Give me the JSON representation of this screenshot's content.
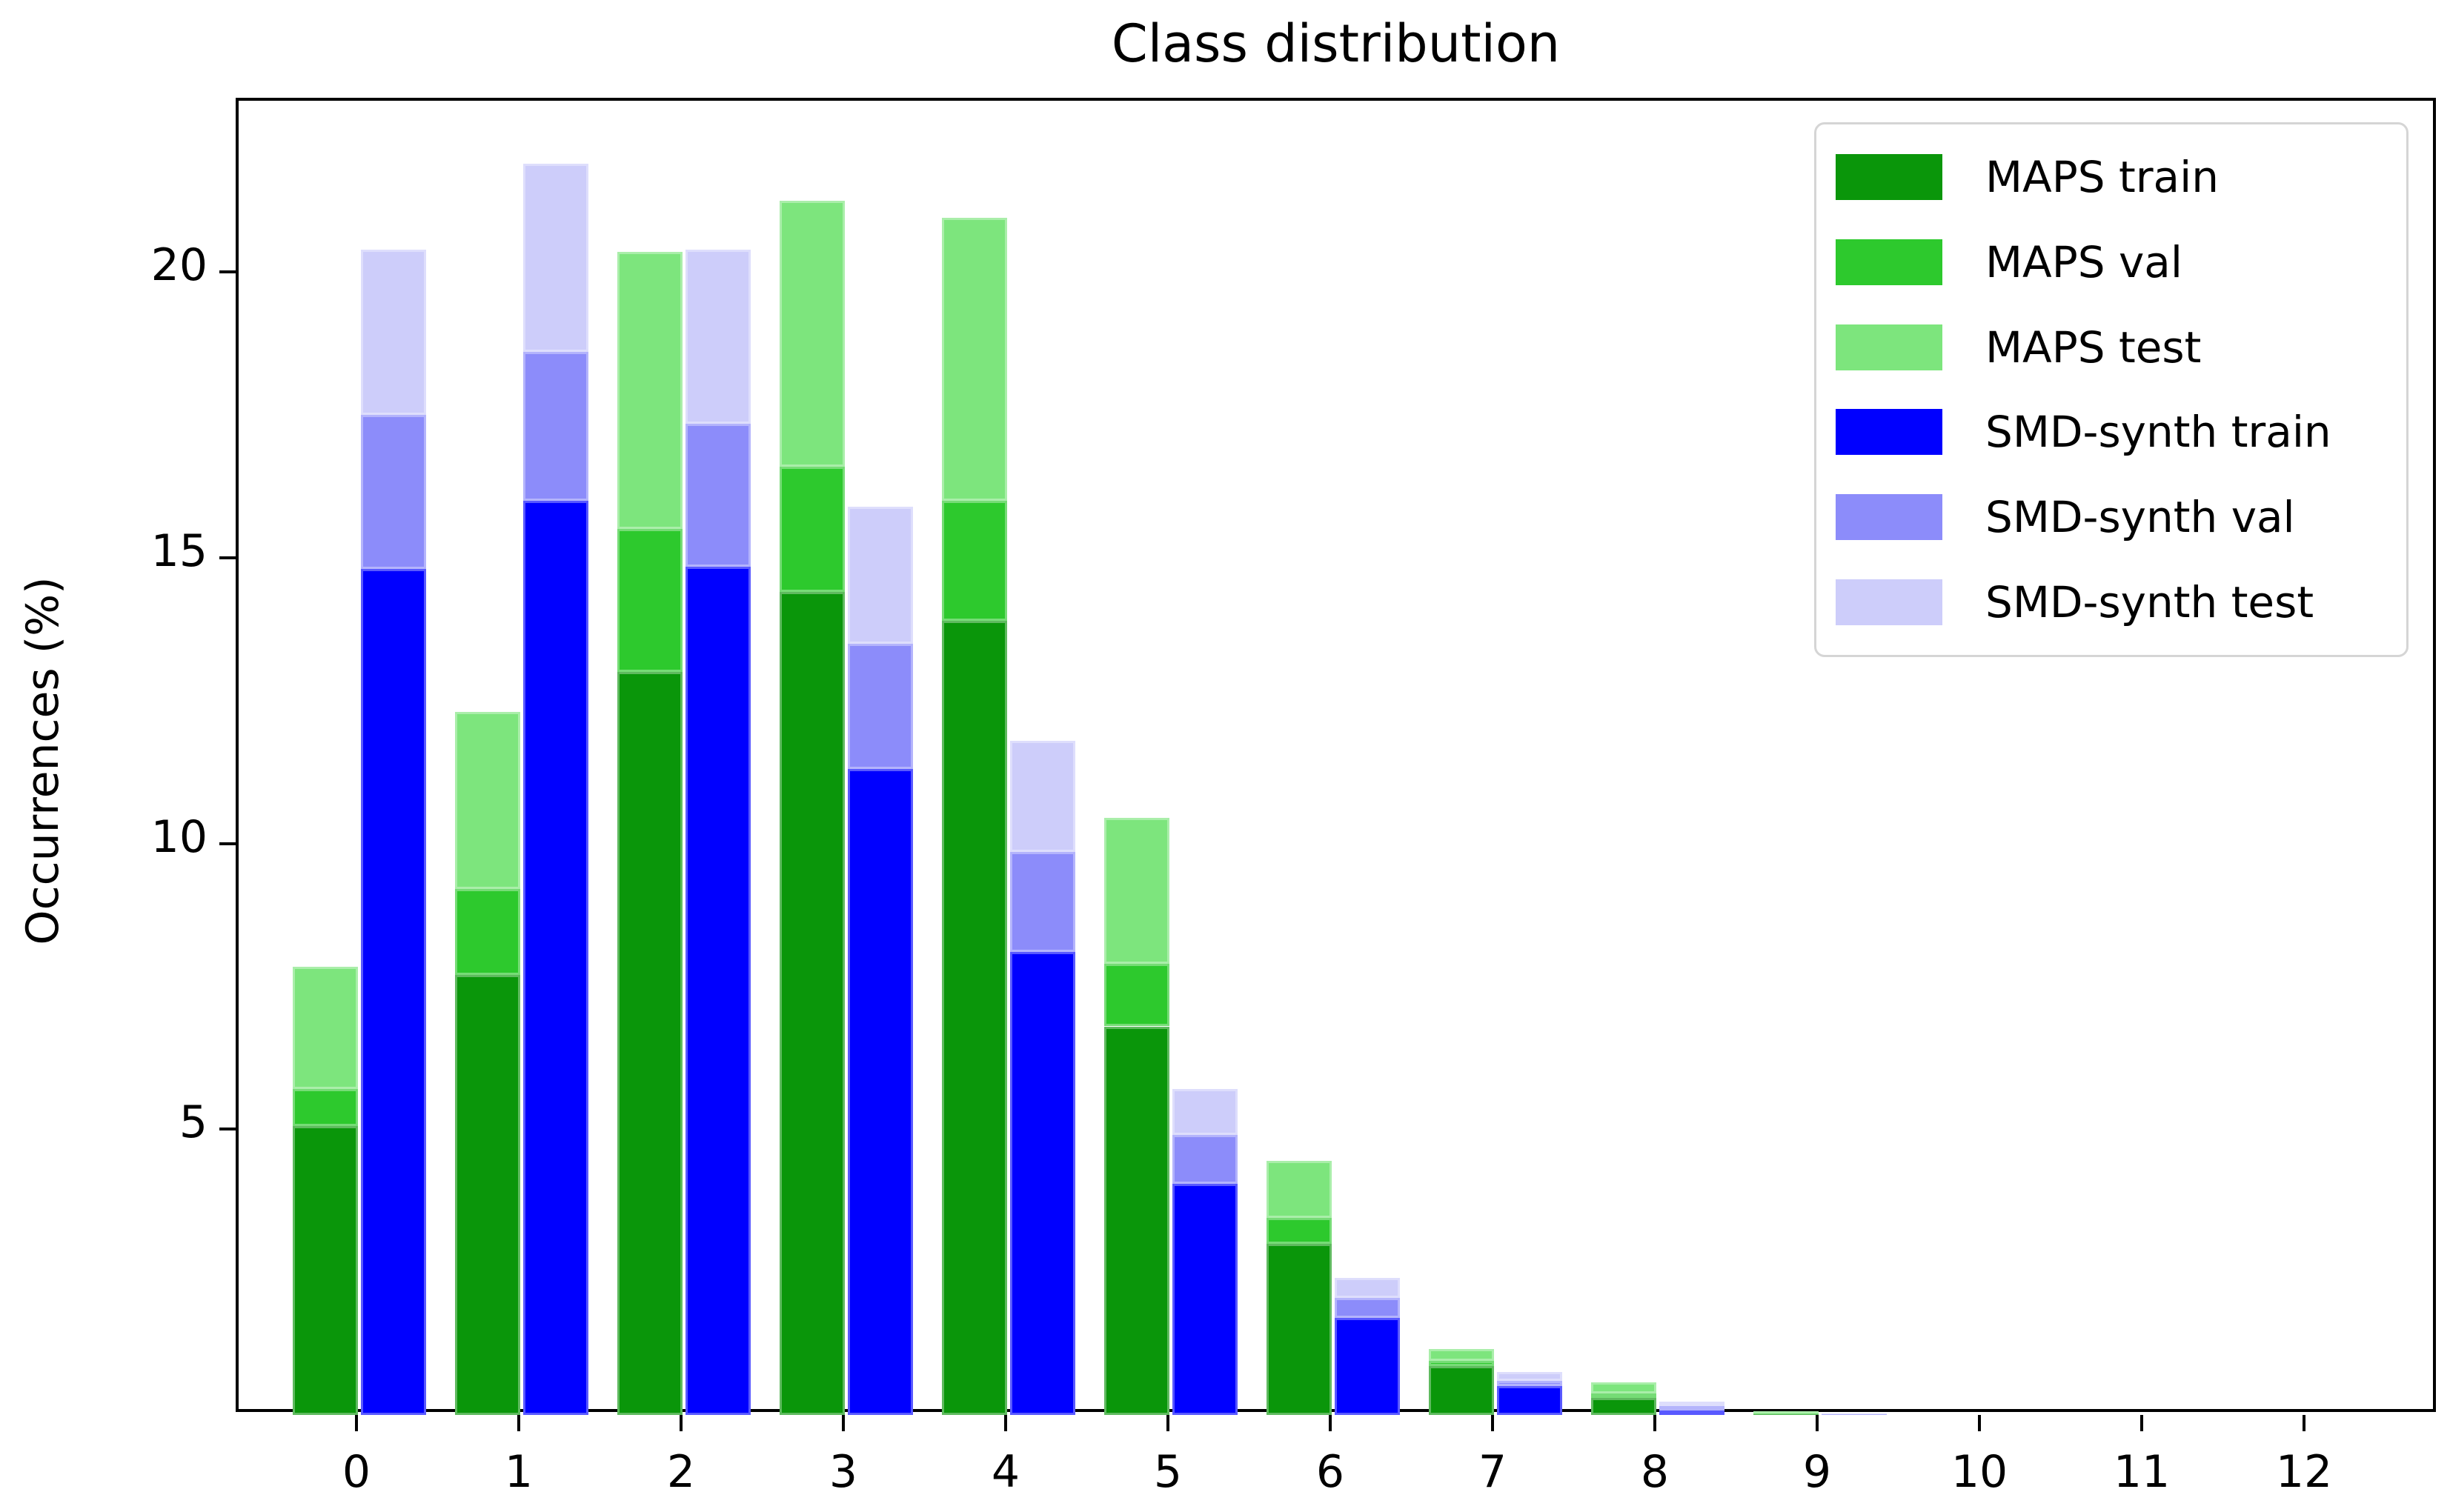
{
  "figure": {
    "title": "Class distribution",
    "ylabel": "Occurrences (%)"
  },
  "chart_data": {
    "type": "bar",
    "stacked": true,
    "grouped": true,
    "title": "Class distribution",
    "xlabel": "",
    "ylabel": "Occurrences (%)",
    "categories": [
      "0",
      "1",
      "2",
      "3",
      "4",
      "5",
      "6",
      "7",
      "8",
      "9",
      "10",
      "11",
      "12"
    ],
    "ylim": [
      0,
      23
    ],
    "yticks": [
      5,
      10,
      15,
      20
    ],
    "grid": false,
    "legend_position": "upper right",
    "series": [
      {
        "name": "MAPS train",
        "group": "MAPS",
        "stack_order": 0,
        "color": "#0a960a",
        "values": [
          5.05,
          7.7,
          13.0,
          14.4,
          13.9,
          6.8,
          3.0,
          0.85,
          0.3,
          0.02,
          0,
          0,
          0
        ]
      },
      {
        "name": "MAPS val",
        "group": "MAPS",
        "stack_order": 1,
        "color": "#2dc92d",
        "values": [
          0.65,
          1.5,
          2.5,
          2.2,
          2.1,
          1.1,
          0.45,
          0.1,
          0.07,
          0.01,
          0,
          0,
          0
        ]
      },
      {
        "name": "MAPS test",
        "group": "MAPS",
        "stack_order": 2,
        "color": "#7de57d",
        "values": [
          2.15,
          3.1,
          4.85,
          4.65,
          4.95,
          2.55,
          1.0,
          0.2,
          0.2,
          0.04,
          0,
          0,
          0
        ]
      },
      {
        "name": "SMD-synth train",
        "group": "SMD-synth",
        "stack_order": 0,
        "color": "#0000ff",
        "values": [
          14.8,
          16.0,
          14.85,
          11.3,
          8.1,
          4.05,
          1.7,
          0.5,
          0.08,
          0.01,
          0,
          0,
          0
        ]
      },
      {
        "name": "SMD-synth val",
        "group": "SMD-synth",
        "stack_order": 1,
        "color": "#8c8cfa",
        "values": [
          2.7,
          2.6,
          2.5,
          2.2,
          1.75,
          0.85,
          0.35,
          0.1,
          0.07,
          0.005,
          0,
          0,
          0
        ]
      },
      {
        "name": "SMD-synth test",
        "group": "SMD-synth",
        "stack_order": 2,
        "color": "#cdcdfa",
        "values": [
          2.9,
          3.3,
          3.05,
          2.4,
          1.95,
          0.8,
          0.35,
          0.15,
          0.08,
          0.005,
          0,
          0,
          0
        ]
      }
    ],
    "colors": {
      "axes": "#000000",
      "background": "#ffffff",
      "legend_border": "#d5d5d5"
    }
  }
}
